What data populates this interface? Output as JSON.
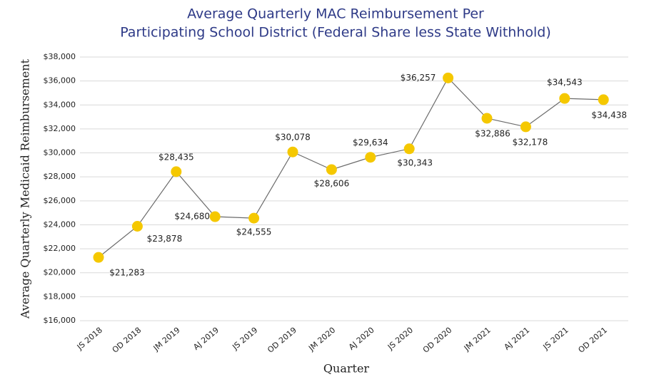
{
  "chart_data": {
    "type": "line",
    "title": [
      "Average Quarterly MAC Reimbursement Per",
      "Participating School District (Federal Share less State Withhold)"
    ],
    "x_label": "Quarter",
    "y_label": "Average Quarterly Medicaid Reimbursement",
    "categories": [
      "JS 2018",
      "OD 2018",
      "JM 2019",
      "AJ 2019",
      "JS 2019",
      "OD 2019",
      "JM 2020",
      "AJ 2020",
      "JS 2020",
      "OD 2020",
      "JM 2021",
      "AJ 2021",
      "JS 2021",
      "OD 2021"
    ],
    "series": [
      {
        "name": "Average Quarterly MAC Reimbursement",
        "color": "#f5c800",
        "line_color": "#6b6b6b",
        "values": [
          21283,
          23878,
          28435,
          24680,
          24555,
          30078,
          28606,
          29634,
          30343,
          36257,
          32886,
          32178,
          34543,
          34438
        ],
        "value_labels": [
          "$21,283",
          "$23,878",
          "$28,435",
          "$24,680",
          "$24,555",
          "$30,078",
          "$28,606",
          "$29,634",
          "$30,343",
          "$36,257",
          "$32,886",
          "$32,178",
          "$34,543",
          "$34,438"
        ]
      }
    ],
    "ylim": [
      16000,
      38000
    ],
    "yticks": [
      {
        "value": 16000,
        "label": "$16,000"
      },
      {
        "value": 18000,
        "label": "$18,000"
      },
      {
        "value": 20000,
        "label": "$20,000"
      },
      {
        "value": 22000,
        "label": "$22,000"
      },
      {
        "value": 24000,
        "label": "$24,000"
      },
      {
        "value": 26000,
        "label": "$26,000"
      },
      {
        "value": 28000,
        "label": "$28,000"
      },
      {
        "value": 30000,
        "label": "$30,000"
      },
      {
        "value": 32000,
        "label": "$32,000"
      },
      {
        "value": 34000,
        "label": "$34,000"
      },
      {
        "value": 36000,
        "label": "$36,000"
      },
      {
        "value": 38000,
        "label": "$38,000"
      }
    ],
    "grid": true
  }
}
